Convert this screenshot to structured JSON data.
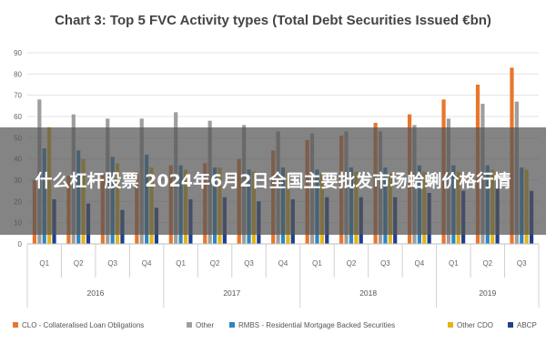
{
  "chart_data": {
    "type": "bar",
    "title": "Chart 3: Top 5 FVC Activity types (Total Debt Securities Issued €bn)",
    "ylim": [
      0,
      90
    ],
    "yticks": [
      0,
      10,
      20,
      30,
      40,
      50,
      60,
      70,
      80,
      90
    ],
    "grid": true,
    "legend_position": "bottom",
    "categories": [
      "Q1",
      "Q2",
      "Q3",
      "Q4",
      "Q1",
      "Q2",
      "Q3",
      "Q4",
      "Q1",
      "Q2",
      "Q3",
      "Q4",
      "Q1",
      "Q2",
      "Q3"
    ],
    "years": [
      {
        "label": "2016",
        "count": 4
      },
      {
        "label": "2017",
        "count": 4
      },
      {
        "label": "2018",
        "count": 4
      },
      {
        "label": "2019",
        "count": 3
      }
    ],
    "series": [
      {
        "name": "CLO - Collateralised Loan Obligations",
        "color": "#e8762c",
        "values": [
          30,
          32,
          33,
          34,
          37,
          38,
          40,
          44,
          49,
          51,
          57,
          61,
          68,
          75,
          83
        ]
      },
      {
        "name": "Other",
        "color": "#9e9e9e",
        "values": [
          68,
          61,
          59,
          59,
          62,
          58,
          56,
          53,
          52,
          53,
          53,
          56,
          59,
          66,
          67
        ]
      },
      {
        "name": "RMBS - Residential Mortgage Backed Securities",
        "color": "#2e86c1",
        "values": [
          45,
          44,
          41,
          42,
          37,
          36,
          35,
          36,
          35,
          36,
          36,
          37,
          37,
          37,
          36
        ]
      },
      {
        "name": "Other CDO",
        "color": "#e7b416",
        "values": [
          55,
          40,
          38,
          36,
          35,
          36,
          34,
          34,
          33,
          34,
          33,
          34,
          34,
          35,
          35
        ]
      },
      {
        "name": "ABCP",
        "color": "#1f3f8f",
        "values": [
          21,
          19,
          16,
          17,
          21,
          22,
          20,
          21,
          22,
          22,
          22,
          24,
          25,
          26,
          25
        ]
      }
    ]
  },
  "overlay": {
    "text": "什么杠杆股票 2024年6月2日全国主要批发市场蛤蜊价格行情"
  }
}
